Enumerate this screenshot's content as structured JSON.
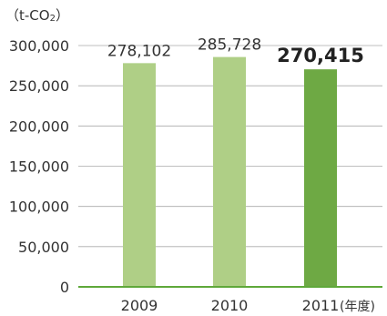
{
  "chart_data": {
    "type": "bar",
    "unit_label": "(t-CO2)",
    "x_unit": "(年度)",
    "categories": [
      "2009",
      "2010",
      "2011"
    ],
    "values": [
      278102,
      285728,
      270415
    ],
    "value_labels": [
      "278,102",
      "285,728",
      "270,415"
    ],
    "y_ticks": [
      "0",
      "50,000",
      "100,000",
      "150,000",
      "200,000",
      "250,000",
      "300,000"
    ],
    "y_tick_values": [
      0,
      50000,
      100000,
      150000,
      200000,
      250000,
      300000
    ],
    "ylim": [
      0,
      300000
    ],
    "grid": true,
    "colors": {
      "bar_light": "#afcf86",
      "bar_highlight": "#6ea944",
      "axis": "#5fa83a",
      "grid": "#aaaaaa",
      "text": "#333333"
    },
    "highlight_index": 2
  }
}
